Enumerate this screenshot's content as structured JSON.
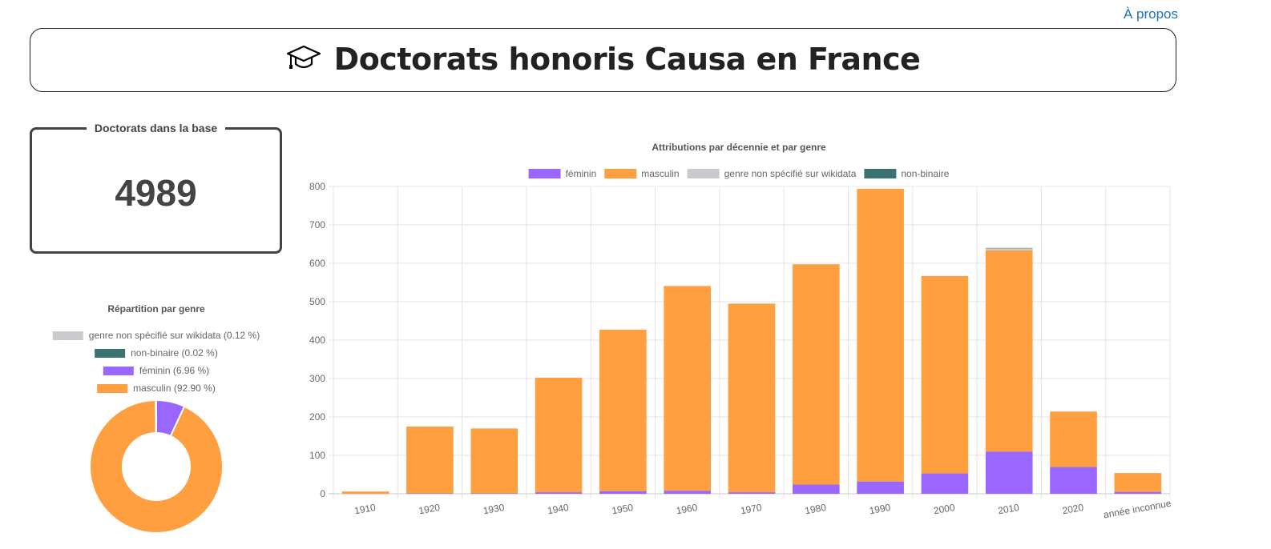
{
  "nav": {
    "about": "À propos"
  },
  "header": {
    "title": "Doctorats honoris Causa en France"
  },
  "counter": {
    "label": "Doctorats dans la base",
    "value": "4989"
  },
  "colors": {
    "feminin": "#9966ff",
    "masculin": "#ff9f40",
    "non_specifie": "#c9cbcf",
    "non_binaire": "#3a7370"
  },
  "chart_data": [
    {
      "type": "pie",
      "title": "Répartition par genre",
      "legend_position": "top",
      "labels": [
        "genre non spécifié sur wikidata (0.12 %)",
        "non-binaire (0.02 %)",
        "féminin (6.96 %)",
        "masculin (92.90 %)"
      ],
      "values": [
        0.12,
        0.02,
        6.96,
        92.9
      ],
      "colors": [
        "#c9cbcf",
        "#3a7370",
        "#9966ff",
        "#ff9f40"
      ],
      "slice_order": [
        2,
        3,
        0,
        1
      ]
    },
    {
      "type": "bar",
      "stacked": true,
      "title": "Attributions par décennie et par genre",
      "legend_position": "top",
      "grid": true,
      "categories": [
        "1910",
        "1920",
        "1930",
        "1940",
        "1950",
        "1960",
        "1970",
        "1980",
        "1990",
        "2000",
        "2010",
        "2020",
        "année inconnue"
      ],
      "ylim": [
        0,
        800
      ],
      "yticks": [
        "0",
        "100",
        "200",
        "300",
        "400",
        "500",
        "600",
        "700",
        "800"
      ],
      "series": [
        {
          "name": "féminin",
          "color": "#9966ff",
          "values": [
            0,
            1,
            1,
            4,
            7,
            8,
            4,
            24,
            32,
            53,
            110,
            70,
            5
          ]
        },
        {
          "name": "masculin",
          "color": "#ff9f40",
          "values": [
            6,
            174,
            169,
            298,
            420,
            533,
            491,
            573,
            762,
            514,
            524,
            144,
            49
          ]
        },
        {
          "name": "genre non spécifié sur wikidata",
          "color": "#c9cbcf",
          "values": [
            0,
            0,
            0,
            0,
            0,
            0,
            0,
            1,
            0,
            0,
            5,
            0,
            0
          ]
        },
        {
          "name": "non-binaire",
          "color": "#3a7370",
          "values": [
            0,
            0,
            0,
            0,
            0,
            0,
            0,
            0,
            0,
            0,
            1,
            0,
            0
          ]
        }
      ]
    }
  ]
}
